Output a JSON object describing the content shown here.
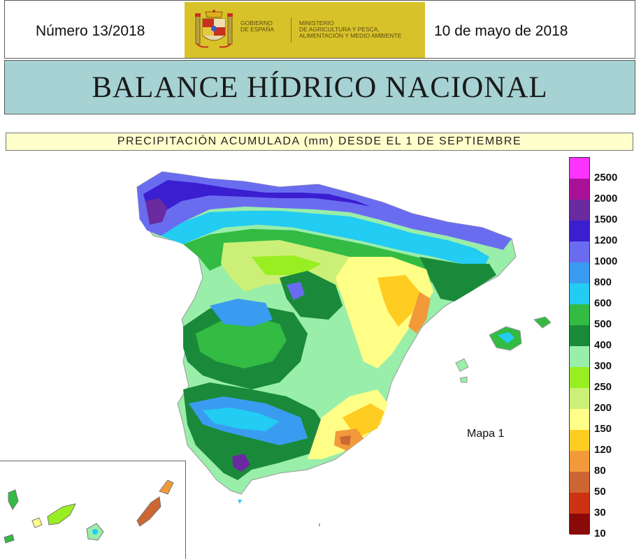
{
  "header": {
    "issue_number": "Número 13/2018",
    "date": "10 de mayo de 2018",
    "gov_logo": {
      "line1": "GOBIERNO",
      "line2": "DE ESPAÑA",
      "ministry_line1": "MINISTERIO",
      "ministry_line2": "DE AGRICULTURA Y PESCA,",
      "ministry_line3": "ALIMENTACIÓN Y MEDIO AMBIENTE"
    }
  },
  "title": "BALANCE HÍDRICO NACIONAL",
  "subtitle": "PRECIPITACIÓN ACUMULADA (mm) DESDE EL 1 DE SEPTIEMBRE",
  "map": {
    "label": "Mapa 1"
  },
  "legend": {
    "classes": [
      {
        "label": "2500",
        "color": "#ff33ff"
      },
      {
        "label": "2000",
        "color": "#aa1199"
      },
      {
        "label": "1500",
        "color": "#6a2aa0"
      },
      {
        "label": "1200",
        "color": "#3a1ed0"
      },
      {
        "label": "1000",
        "color": "#6a6cf0"
      },
      {
        "label": "800",
        "color": "#3a9cf0"
      },
      {
        "label": "600",
        "color": "#22ccf2"
      },
      {
        "label": "500",
        "color": "#33bb44"
      },
      {
        "label": "400",
        "color": "#1a8a3a"
      },
      {
        "label": "300",
        "color": "#99eeaa"
      },
      {
        "label": "250",
        "color": "#99ee22"
      },
      {
        "label": "200",
        "color": "#ccf077"
      },
      {
        "label": "150",
        "color": "#ffff88"
      },
      {
        "label": "120",
        "color": "#ffcc22"
      },
      {
        "label": "80",
        "color": "#f29a3a"
      },
      {
        "label": "50",
        "color": "#cc6633"
      },
      {
        "label": "30",
        "color": "#cc3311"
      },
      {
        "label": "10",
        "color": "#8a0a0a"
      }
    ]
  }
}
